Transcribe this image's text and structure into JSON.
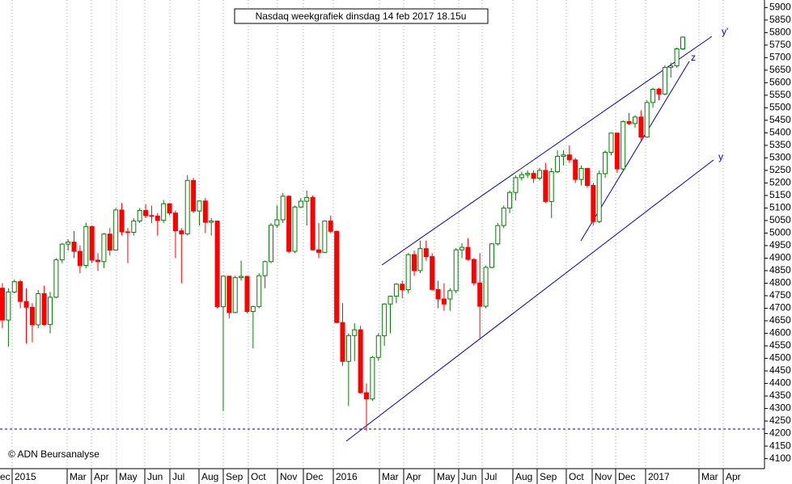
{
  "chart_data": {
    "type": "candlestick",
    "title": "Nasdaq weekgrafiek dinsdag 14 feb 2017 18.15u",
    "copyright": "© ADN Beursanalyse",
    "annotations": [
      "y'",
      "y",
      "z"
    ],
    "up_color": "#008000",
    "down_color": "#ff0000",
    "ylim": [
      4060,
      5930
    ],
    "yticks": [
      4100,
      4150,
      4200,
      4250,
      4300,
      4350,
      4400,
      4450,
      4500,
      4550,
      4600,
      4650,
      4700,
      4750,
      4800,
      4850,
      4900,
      4950,
      5000,
      5050,
      5100,
      5150,
      5200,
      5250,
      5300,
      5350,
      5400,
      5450,
      5500,
      5550,
      5600,
      5650,
      5700,
      5750,
      5800,
      5850,
      5900
    ],
    "xlabels": [
      "ec",
      "2015",
      "Mar",
      "Apr",
      "May",
      "Jun",
      "Jul",
      "Aug",
      "Sep",
      "Oct",
      "Nov",
      "Dec",
      "2016",
      "Mar",
      "Apr",
      "May",
      "Jun",
      "Jul",
      "Aug",
      "Sep",
      "Oct",
      "Nov",
      "Dec",
      "2017",
      "Mar",
      "Apr"
    ],
    "ohlc": [
      [
        4780,
        4800,
        4620,
        4653
      ],
      [
        4653,
        4780,
        4547,
        4765
      ],
      [
        4765,
        4815,
        4760,
        4806
      ],
      [
        4806,
        4814,
        4700,
        4727
      ],
      [
        4727,
        4780,
        4560,
        4704
      ],
      [
        4704,
        4720,
        4564,
        4634
      ],
      [
        4634,
        4773,
        4620,
        4758
      ],
      [
        4758,
        4790,
        4631,
        4635
      ],
      [
        4635,
        4765,
        4600,
        4744
      ],
      [
        4744,
        4900,
        4740,
        4893
      ],
      [
        4893,
        4960,
        4880,
        4956
      ],
      [
        4956,
        4975,
        4930,
        4964
      ],
      [
        4964,
        5008,
        4900,
        4927
      ],
      [
        4927,
        4950,
        4840,
        4871
      ],
      [
        4871,
        5042,
        4860,
        5026
      ],
      [
        5026,
        5030,
        4880,
        4892
      ],
      [
        4892,
        4920,
        4850,
        4886
      ],
      [
        4886,
        5000,
        4860,
        4996
      ],
      [
        4996,
        5020,
        4910,
        4932
      ],
      [
        4932,
        5100,
        4930,
        5092
      ],
      [
        5092,
        5120,
        4990,
        5005
      ],
      [
        5005,
        5020,
        4880,
        5003
      ],
      [
        5003,
        5060,
        4990,
        5048
      ],
      [
        5048,
        5100,
        5040,
        5090
      ],
      [
        5090,
        5115,
        5060,
        5070
      ],
      [
        5070,
        5110,
        5040,
        5068
      ],
      [
        5068,
        5080,
        4990,
        5051
      ],
      [
        5051,
        5132,
        5040,
        5117
      ],
      [
        5117,
        5120,
        5070,
        5080
      ],
      [
        5080,
        5090,
        4900,
        5009
      ],
      [
        5009,
        5020,
        4800,
        4997
      ],
      [
        4997,
        5231,
        4990,
        5210
      ],
      [
        5210,
        5220,
        5080,
        5088
      ],
      [
        5088,
        5130,
        5030,
        5128
      ],
      [
        5128,
        5140,
        5000,
        5043
      ],
      [
        5043,
        5060,
        4990,
        5048
      ],
      [
        5048,
        5050,
        4700,
        4706
      ],
      [
        4706,
        4828,
        4290,
        4828
      ],
      [
        4828,
        4830,
        4660,
        4683
      ],
      [
        4683,
        4830,
        4680,
        4822
      ],
      [
        4822,
        4890,
        4810,
        4827
      ],
      [
        4827,
        4830,
        4680,
        4687
      ],
      [
        4687,
        4710,
        4540,
        4707
      ],
      [
        4707,
        4840,
        4700,
        4830
      ],
      [
        4830,
        4890,
        4780,
        4886
      ],
      [
        4886,
        5040,
        4880,
        5031
      ],
      [
        5031,
        5110,
        5020,
        5053
      ],
      [
        5053,
        5160,
        5040,
        5147
      ],
      [
        5147,
        5150,
        4920,
        4927
      ],
      [
        4927,
        5110,
        4920,
        5104
      ],
      [
        5104,
        5140,
        5100,
        5127
      ],
      [
        5127,
        5170,
        5030,
        5142
      ],
      [
        5142,
        5150,
        4930,
        4933
      ],
      [
        4933,
        5040,
        4900,
        4923
      ],
      [
        4923,
        5050,
        4920,
        5048
      ],
      [
        5048,
        5070,
        5000,
        5007
      ],
      [
        5007,
        5010,
        4640,
        4643
      ],
      [
        4643,
        4720,
        4470,
        4488
      ],
      [
        4488,
        4600,
        4310,
        4591
      ],
      [
        4591,
        4640,
        4490,
        4614
      ],
      [
        4614,
        4630,
        4360,
        4363
      ],
      [
        4363,
        4400,
        4210,
        4338
      ],
      [
        4338,
        4510,
        4330,
        4504
      ],
      [
        4504,
        4600,
        4490,
        4590
      ],
      [
        4590,
        4720,
        4550,
        4717
      ],
      [
        4717,
        4750,
        4600,
        4748
      ],
      [
        4748,
        4800,
        4720,
        4796
      ],
      [
        4796,
        4810,
        4740,
        4774
      ],
      [
        4774,
        4920,
        4760,
        4914
      ],
      [
        4914,
        4930,
        4830,
        4850
      ],
      [
        4850,
        4970,
        4840,
        4938
      ],
      [
        4938,
        4970,
        4890,
        4906
      ],
      [
        4906,
        4920,
        4770,
        4775
      ],
      [
        4775,
        4810,
        4700,
        4737
      ],
      [
        4737,
        4800,
        4690,
        4717
      ],
      [
        4737,
        4780,
        4690,
        4770
      ],
      [
        4770,
        4940,
        4760,
        4933
      ],
      [
        4933,
        4960,
        4900,
        4943
      ],
      [
        4943,
        4980,
        4890,
        4895
      ],
      [
        4895,
        4900,
        4790,
        4801
      ],
      [
        4801,
        4920,
        4580,
        4708
      ],
      [
        4708,
        4870,
        4700,
        4863
      ],
      [
        4863,
        4960,
        4860,
        4957
      ],
      [
        4957,
        5040,
        4950,
        5030
      ],
      [
        5030,
        5110,
        5020,
        5100
      ],
      [
        5100,
        5170,
        5080,
        5162
      ],
      [
        5162,
        5230,
        5130,
        5221
      ],
      [
        5221,
        5245,
        5210,
        5233
      ],
      [
        5233,
        5250,
        5220,
        5238
      ],
      [
        5238,
        5250,
        5200,
        5219
      ],
      [
        5219,
        5260,
        5210,
        5250
      ],
      [
        5250,
        5280,
        5120,
        5126
      ],
      [
        5126,
        5260,
        5060,
        5245
      ],
      [
        5245,
        5330,
        5240,
        5306
      ],
      [
        5306,
        5330,
        5270,
        5312
      ],
      [
        5312,
        5350,
        5280,
        5292
      ],
      [
        5292,
        5300,
        5200,
        5214
      ],
      [
        5214,
        5270,
        5190,
        5258
      ],
      [
        5258,
        5260,
        5180,
        5190
      ],
      [
        5190,
        5200,
        5030,
        5046
      ],
      [
        5046,
        5250,
        5040,
        5237
      ],
      [
        5237,
        5330,
        5220,
        5322
      ],
      [
        5322,
        5400,
        5310,
        5399
      ],
      [
        5399,
        5400,
        5240,
        5256
      ],
      [
        5256,
        5450,
        5250,
        5445
      ],
      [
        5445,
        5480,
        5430,
        5437
      ],
      [
        5437,
        5470,
        5420,
        5463
      ],
      [
        5463,
        5490,
        5370,
        5383
      ],
      [
        5383,
        5530,
        5380,
        5521
      ],
      [
        5521,
        5580,
        5500,
        5574
      ],
      [
        5574,
        5580,
        5530,
        5555
      ],
      [
        5555,
        5670,
        5550,
        5661
      ],
      [
        5661,
        5680,
        5620,
        5667
      ],
      [
        5667,
        5740,
        5660,
        5735
      ],
      [
        5735,
        5785,
        5730,
        5782
      ]
    ]
  }
}
